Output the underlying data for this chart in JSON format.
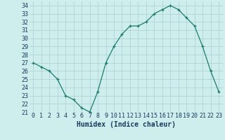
{
  "x": [
    0,
    1,
    2,
    3,
    4,
    5,
    6,
    7,
    8,
    9,
    10,
    11,
    12,
    13,
    14,
    15,
    16,
    17,
    18,
    19,
    20,
    21,
    22,
    23
  ],
  "y": [
    27,
    26.5,
    26,
    25,
    23,
    22.5,
    21.5,
    21,
    23.5,
    27,
    29,
    30.5,
    31.5,
    31.5,
    32,
    33,
    33.5,
    34,
    33.5,
    32.5,
    31.5,
    29,
    26,
    23.5
  ],
  "xlabel": "Humidex (Indice chaleur)",
  "ylim": [
    21,
    34.5
  ],
  "xlim": [
    -0.5,
    23.5
  ],
  "yticks": [
    21,
    22,
    23,
    24,
    25,
    26,
    27,
    28,
    29,
    30,
    31,
    32,
    33,
    34
  ],
  "xticks": [
    0,
    1,
    2,
    3,
    4,
    5,
    6,
    7,
    8,
    9,
    10,
    11,
    12,
    13,
    14,
    15,
    16,
    17,
    18,
    19,
    20,
    21,
    22,
    23
  ],
  "line_color": "#1e7b6a",
  "marker": "+",
  "bg_color": "#cdeeed",
  "grid_color": "#aacece",
  "text_color": "#1a3a5c",
  "xlabel_fontsize": 7,
  "tick_fontsize": 6,
  "marker_size": 3,
  "line_width": 0.9
}
